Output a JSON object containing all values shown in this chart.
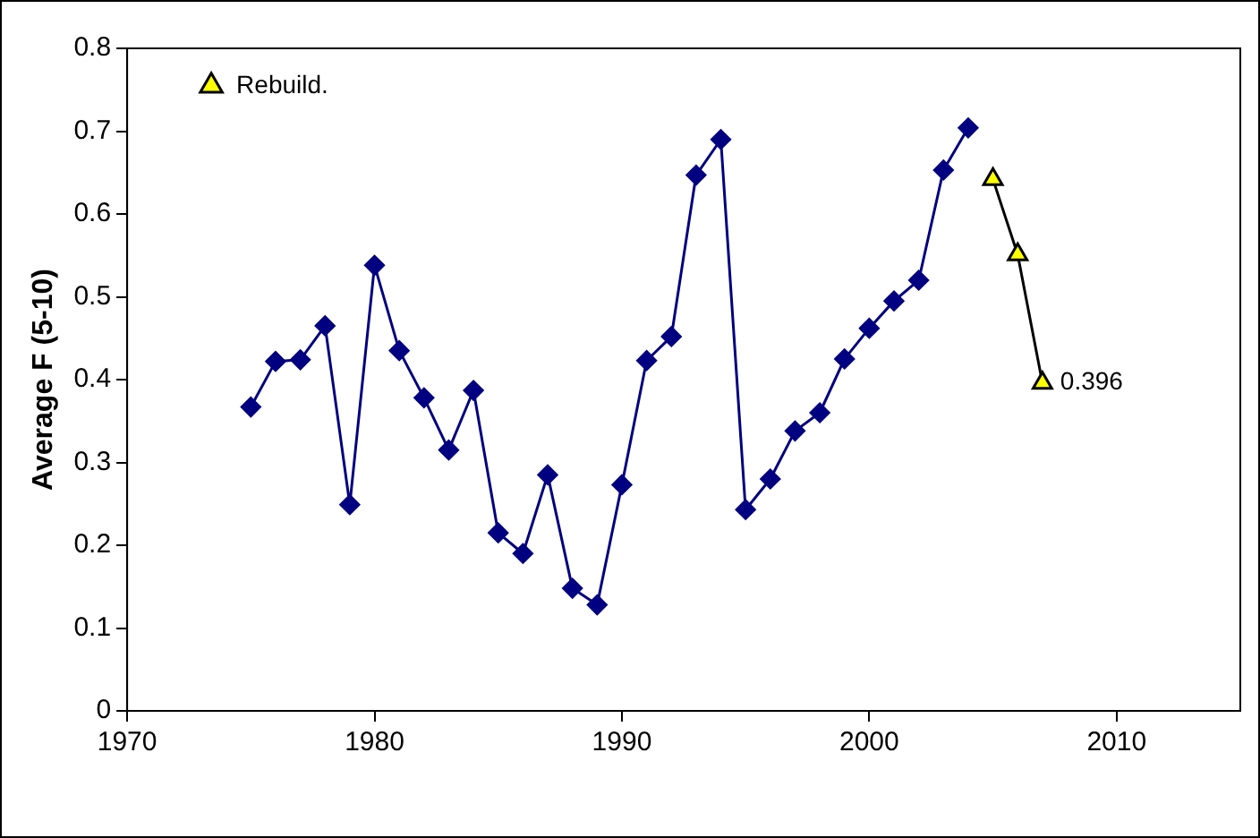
{
  "chart_data": {
    "type": "line",
    "ylabel": "Average F (5-10)",
    "xlim": [
      1970,
      2015
    ],
    "xticks": [
      1970,
      1980,
      1990,
      2000,
      2010
    ],
    "ylim": [
      0,
      0.8
    ],
    "yticks": [
      0,
      0.1,
      0.2,
      0.3,
      0.4,
      0.5,
      0.6,
      0.7,
      0.8
    ],
    "grid": false,
    "legend": "top left",
    "line_style": "solid",
    "series": [
      {
        "color": "#000080",
        "marker": "diamond",
        "x": [
          1975,
          1976,
          1977,
          1978,
          1979,
          1980,
          1981,
          1982,
          1983,
          1984,
          1985,
          1986,
          1987,
          1988,
          1989,
          1990,
          1991,
          1992,
          1993,
          1994,
          1995,
          1996,
          1997,
          1998,
          1999,
          2000,
          2001,
          2002,
          2003,
          2004
        ],
        "values": [
          0.367,
          0.422,
          0.424,
          0.465,
          0.249,
          0.538,
          0.435,
          0.378,
          0.315,
          0.387,
          0.215,
          0.19,
          0.285,
          0.148,
          0.128,
          0.273,
          0.423,
          0.452,
          0.647,
          0.69,
          0.243,
          0.28,
          0.338,
          0.36,
          0.425,
          0.462,
          0.495,
          0.52,
          0.653,
          0.704
        ]
      },
      {
        "name": "Rebuild.",
        "color": "#ffff00",
        "marker": "triangle",
        "x": [
          2005,
          2006,
          2007
        ],
        "values": [
          0.642,
          0.551,
          0.396
        ],
        "value_labels": [
          null,
          null,
          "0.396"
        ]
      }
    ]
  }
}
